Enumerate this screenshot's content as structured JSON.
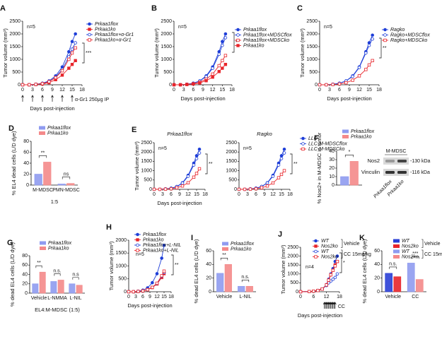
{
  "chart_data": [
    {
      "type": "line",
      "panel": "A",
      "xlabel": "Days post-injection",
      "ylabel": "Tumor volume (mm³)",
      "n": "n=5",
      "sig": "***",
      "xlim": [
        0,
        18
      ],
      "xticks": [
        0,
        3,
        6,
        9,
        12,
        15,
        18
      ],
      "ylim": [
        0,
        2500
      ],
      "yticks": [
        0,
        500,
        1000,
        1500,
        2000,
        2500
      ],
      "dose_days": [
        0,
        3,
        6,
        9,
        12,
        15
      ],
      "dose_label": "α-Gr1 250μg IP",
      "x": [
        0,
        2,
        4,
        6,
        8,
        10,
        12,
        14,
        15,
        16
      ],
      "series": [
        {
          "name": "Prkaa1flox",
          "color": "#1f3fd8",
          "marker": "circle",
          "filled": true,
          "values": [
            0,
            0,
            20,
            60,
            150,
            350,
            700,
            1300,
            1700,
            2000
          ]
        },
        {
          "name": "Prkaa1ko",
          "color": "#e8252b",
          "marker": "square",
          "filled": true,
          "values": [
            0,
            0,
            10,
            30,
            80,
            200,
            380,
            650,
            800,
            950
          ]
        },
        {
          "name": "Prkaa1flox+α-Gr1",
          "color": "#1f3fd8",
          "marker": "circle",
          "filled": false,
          "values": [
            0,
            0,
            15,
            50,
            120,
            300,
            600,
            1100,
            1400,
            1650
          ]
        },
        {
          "name": "Prkaa1ko+α-Gr1",
          "color": "#e8252b",
          "marker": "square",
          "filled": false,
          "values": [
            0,
            0,
            15,
            45,
            120,
            280,
            550,
            1000,
            1250,
            1450
          ]
        }
      ]
    },
    {
      "type": "line",
      "panel": "B",
      "xlabel": "Days post-injection",
      "ylabel": "Tumor volume (mm³)",
      "n": "n=5",
      "sig": "*",
      "xlim": [
        0,
        18
      ],
      "xticks": [
        0,
        3,
        6,
        9,
        12,
        15,
        18
      ],
      "ylim": [
        0,
        2500
      ],
      "yticks": [
        0,
        500,
        1000,
        1500,
        2000,
        2500
      ],
      "x": [
        0,
        2,
        4,
        6,
        8,
        10,
        12,
        14,
        15,
        16
      ],
      "series": [
        {
          "name": "Prkaa1flox",
          "color": "#1f3fd8",
          "marker": "circle",
          "filled": true,
          "values": [
            0,
            0,
            20,
            60,
            150,
            350,
            700,
            1300,
            1700,
            2000
          ]
        },
        {
          "name": "Prkaa1flox+MDSCflox",
          "color": "#1f3fd8",
          "marker": "circle",
          "filled": false,
          "values": [
            0,
            0,
            20,
            60,
            150,
            320,
            650,
            1200,
            1550,
            1850
          ]
        },
        {
          "name": "Prkaa1flox+MDSCko",
          "color": "#e8252b",
          "marker": "square",
          "filled": false,
          "values": [
            0,
            0,
            15,
            40,
            100,
            220,
            420,
            750,
            950,
            1150
          ]
        },
        {
          "name": "Prkaa1ko",
          "color": "#e8252b",
          "marker": "square",
          "filled": true,
          "values": [
            0,
            0,
            10,
            30,
            70,
            160,
            300,
            520,
            650,
            800
          ]
        }
      ]
    },
    {
      "type": "line",
      "panel": "C",
      "xlabel": "Days post-injection",
      "ylabel": "Tumor volume (mm³)",
      "n": "n=5",
      "sig": "**",
      "xlim": [
        0,
        18
      ],
      "xticks": [
        0,
        3,
        6,
        9,
        12,
        15,
        18
      ],
      "ylim": [
        0,
        2500
      ],
      "yticks": [
        0,
        500,
        1000,
        1500,
        2000,
        2500
      ],
      "x": [
        0,
        2,
        4,
        6,
        8,
        10,
        12,
        14,
        15,
        16
      ],
      "series": [
        {
          "name": "Ragko",
          "color": "#1f3fd8",
          "marker": "circle",
          "filled": true,
          "values": [
            0,
            0,
            20,
            60,
            150,
            350,
            700,
            1300,
            1650,
            1950
          ]
        },
        {
          "name": "Ragko+MDSCflox",
          "color": "#1f3fd8",
          "marker": "circle",
          "filled": false,
          "values": [
            0,
            0,
            20,
            60,
            150,
            330,
            680,
            1250,
            1550,
            1800
          ]
        },
        {
          "name": "Ragko+MDSCko",
          "color": "#e8252b",
          "marker": "square",
          "filled": false,
          "values": [
            0,
            0,
            10,
            30,
            80,
            180,
            350,
            600,
            780,
            950
          ]
        }
      ]
    },
    {
      "type": "bar",
      "panel": "D",
      "xlabel": "1:5",
      "ylabel": "% EL4 dead cells (L/D dye)",
      "ylim": [
        0,
        80
      ],
      "yticks": [
        0,
        20,
        40,
        60,
        80
      ],
      "categories": [
        "M-MDSC",
        "PMN-MDSC"
      ],
      "sig": [
        "**",
        "ns"
      ],
      "series": [
        {
          "name": "Prkaa1flox",
          "color": "#8f9bf0",
          "values": [
            20,
            2
          ]
        },
        {
          "name": "Prkaa1ko",
          "color": "#f4898a",
          "values": [
            42,
            3
          ]
        }
      ]
    },
    {
      "type": "line",
      "panel": "E",
      "title": "Prkaa1flox",
      "xlabel": "Days post-injection",
      "ylabel": "Tumor volume (mm³)",
      "n": "n=5",
      "sig": "**",
      "xlim": [
        0,
        18
      ],
      "xticks": [
        0,
        3,
        6,
        9,
        12,
        15,
        18
      ],
      "ylim": [
        0,
        2500
      ],
      "yticks": [
        0,
        500,
        1000,
        1500,
        2000,
        2500
      ],
      "x": [
        0,
        2,
        4,
        6,
        8,
        10,
        12,
        14,
        15,
        16
      ],
      "series": [
        {
          "color": "#1f3fd8",
          "marker": "circle",
          "filled": true,
          "values": [
            0,
            0,
            20,
            60,
            150,
            350,
            750,
            1400,
            1800,
            2150
          ]
        },
        {
          "color": "#1f3fd8",
          "marker": "circle",
          "filled": false,
          "values": [
            0,
            0,
            20,
            55,
            140,
            330,
            700,
            1300,
            1650,
            1950
          ]
        },
        {
          "color": "#e8252b",
          "marker": "square",
          "filled": false,
          "values": [
            0,
            0,
            10,
            30,
            80,
            180,
            350,
            650,
            850,
            1100
          ]
        }
      ]
    },
    {
      "type": "line",
      "title": "Ragko",
      "n": "n=5",
      "sig": "**",
      "xlim": [
        0,
        18
      ],
      "xticks": [
        0,
        3,
        6,
        9,
        12,
        15,
        18
      ],
      "ylim": [
        0,
        2500
      ],
      "yticks": [
        0,
        500,
        1000,
        1500,
        2000,
        2500
      ],
      "x": [
        0,
        2,
        4,
        6,
        8,
        10,
        12,
        14,
        15,
        16
      ],
      "series": [
        {
          "name": "LLC",
          "color": "#1f3fd8",
          "marker": "circle",
          "filled": true,
          "values": [
            0,
            0,
            20,
            60,
            150,
            350,
            750,
            1400,
            1800,
            2150
          ]
        },
        {
          "name": "LLC-M-MDSCflox",
          "color": "#1f3fd8",
          "marker": "circle",
          "filled": false,
          "values": [
            0,
            0,
            20,
            60,
            150,
            340,
            700,
            1300,
            1650,
            1950
          ]
        },
        {
          "name": "LLC-M-MDSCko",
          "color": "#e8252b",
          "marker": "square",
          "filled": false,
          "values": [
            0,
            0,
            10,
            30,
            80,
            180,
            340,
            620,
            800,
            1000
          ]
        }
      ]
    },
    {
      "type": "bar",
      "panel": "F",
      "ylabel": "% Nos2+ in M-MDSC in tumor",
      "ylim": [
        0,
        40
      ],
      "yticks": [
        0,
        10,
        20,
        30,
        40
      ],
      "categories": [
        null
      ],
      "sig": [
        "*"
      ],
      "series": [
        {
          "name": "Prkaa1flox",
          "color": "#8f9bf0",
          "values": [
            10
          ]
        },
        {
          "name": "Prkaa1ko",
          "color": "#f4898a",
          "values": [
            28
          ]
        }
      ],
      "blot": {
        "header": "M-MDSC",
        "rows": [
          "Nos2",
          "Vinculin"
        ],
        "sizes": [
          "-130 kDa",
          "-116 kDa"
        ],
        "lanes": [
          "Prkaa1flox",
          "Prkaa1ko"
        ]
      }
    },
    {
      "type": "bar",
      "panel": "G",
      "xlabel": "EL4:M-MDSC (1:5)",
      "ylabel": "% dead EL4 cells (L/D dye)",
      "ylim": [
        0,
        80
      ],
      "yticks": [
        0,
        20,
        40,
        60,
        80
      ],
      "categories": [
        "Vehicle",
        "L-NMMA",
        "L-NIL"
      ],
      "sig": [
        "**",
        "n.s.",
        "n.s"
      ],
      "series": [
        {
          "name": "Prkaa1flox",
          "color": "#8f9bf0",
          "values": [
            20,
            25,
            20
          ]
        },
        {
          "name": "Prkaa1ko",
          "color": "#f4898a",
          "values": [
            45,
            28,
            17
          ]
        }
      ]
    },
    {
      "type": "line",
      "panel": "H",
      "xlabel": "Days post-injection",
      "ylabel": "Tumor volume (mm³)",
      "n": "n=5",
      "sig": "**",
      "xlim": [
        0,
        18
      ],
      "xticks": [
        0,
        3,
        6,
        9,
        12,
        15,
        18
      ],
      "ylim": [
        0,
        2000
      ],
      "yticks": [
        0,
        500,
        1000,
        1500,
        2000
      ],
      "x": [
        0,
        2,
        4,
        6,
        8,
        10,
        12,
        14,
        15
      ],
      "series": [
        {
          "name": "Prkaa1flox",
          "color": "#1f3fd8",
          "marker": "circle",
          "filled": true,
          "values": [
            0,
            0,
            20,
            60,
            150,
            350,
            700,
            1300,
            1800
          ]
        },
        {
          "name": "Prkaa1ko",
          "color": "#e8252b",
          "marker": "square",
          "filled": true,
          "values": [
            0,
            0,
            10,
            30,
            80,
            160,
            300,
            550,
            700
          ]
        },
        {
          "name": "Prkaa1flox+L-NIL",
          "color": "#1f3fd8",
          "marker": "circle",
          "filled": false,
          "values": [
            0,
            0,
            10,
            30,
            80,
            170,
            320,
            600,
            750
          ]
        },
        {
          "name": "Prkaa1ko+L-NIL",
          "color": "#e8252b",
          "marker": "square",
          "filled": false,
          "values": [
            0,
            0,
            10,
            30,
            80,
            170,
            330,
            620,
            800
          ]
        }
      ]
    },
    {
      "type": "bar",
      "panel": "I",
      "ylabel": "% dead EL4 cells (L/D dye)",
      "ylim": [
        0,
        60
      ],
      "yticks": [
        0,
        20,
        40,
        60
      ],
      "categories": [
        "Vehicle",
        "L-NIL"
      ],
      "sig": [
        "**",
        "n.s."
      ],
      "series": [
        {
          "name": "Prkaa1flox",
          "color": "#8f9bf0",
          "values": [
            27,
            8
          ]
        },
        {
          "name": "Prkaa1ko",
          "color": "#f4898a",
          "values": [
            40,
            8
          ]
        }
      ]
    },
    {
      "type": "line",
      "panel": "J",
      "xlabel": "Days post-injection",
      "ylabel": "Tumor volume (mm³)",
      "n": "n=4",
      "sig": "*",
      "xlim": [
        0,
        18
      ],
      "xticks": [
        0,
        6,
        12,
        18
      ],
      "ylim": [
        0,
        2500
      ],
      "yticks": [
        0,
        500,
        1000,
        1500,
        2000,
        2500
      ],
      "dose_days": [
        11,
        11.5,
        12,
        12.5,
        13,
        13.5,
        14,
        14.5,
        15,
        15.5,
        16
      ],
      "dose_label": "CC",
      "legend_groups": [
        "Vehicle",
        "CC 15mg/kg"
      ],
      "x": [
        0,
        4,
        6,
        8,
        10,
        12,
        13,
        14,
        15,
        16,
        17
      ],
      "series": [
        {
          "name": "WT",
          "color": "#1f3fd8",
          "marker": "circle",
          "filled": true,
          "values": [
            0,
            10,
            30,
            70,
            150,
            400,
            700,
            1000,
            1300,
            1700,
            2000
          ]
        },
        {
          "name": "Nos2ko",
          "color": "#e8252b",
          "marker": "square",
          "filled": true,
          "values": [
            0,
            10,
            30,
            70,
            150,
            380,
            650,
            950,
            1200,
            1500,
            1700
          ]
        },
        {
          "name": "WT",
          "color": "#1f3fd8",
          "marker": "circle",
          "filled": false,
          "values": [
            0,
            10,
            30,
            70,
            150,
            350,
            500,
            600,
            700,
            800,
            1000
          ]
        },
        {
          "name": "Nos2ko",
          "color": "#e8252b",
          "marker": "square",
          "filled": false,
          "values": [
            0,
            10,
            30,
            70,
            150,
            380,
            650,
            950,
            1200,
            1450,
            1700
          ]
        }
      ]
    },
    {
      "type": "bar",
      "panel": "K",
      "ylabel": "% dead EL4 cells (L/D dye)",
      "ylim": [
        0,
        60
      ],
      "yticks": [
        0,
        20,
        40,
        60
      ],
      "categories": [
        "Vehicle",
        "CC"
      ],
      "sig": [
        "n.s.",
        "***"
      ],
      "legend_groups": [
        "Vehicle",
        "CC 15mg/kg"
      ],
      "series": [
        {
          "name": "WT",
          "color": "#2a3fd6",
          "values": [
            27,
            null
          ]
        },
        {
          "name": "Nos2ko",
          "color": "#e8252b",
          "values": [
            22,
            null
          ]
        },
        {
          "name": "WT",
          "color": "#8f9bf0",
          "values": [
            null,
            42
          ]
        },
        {
          "name": "Nos2ko",
          "color": "#f4898a",
          "values": [
            null,
            18
          ]
        }
      ]
    }
  ]
}
